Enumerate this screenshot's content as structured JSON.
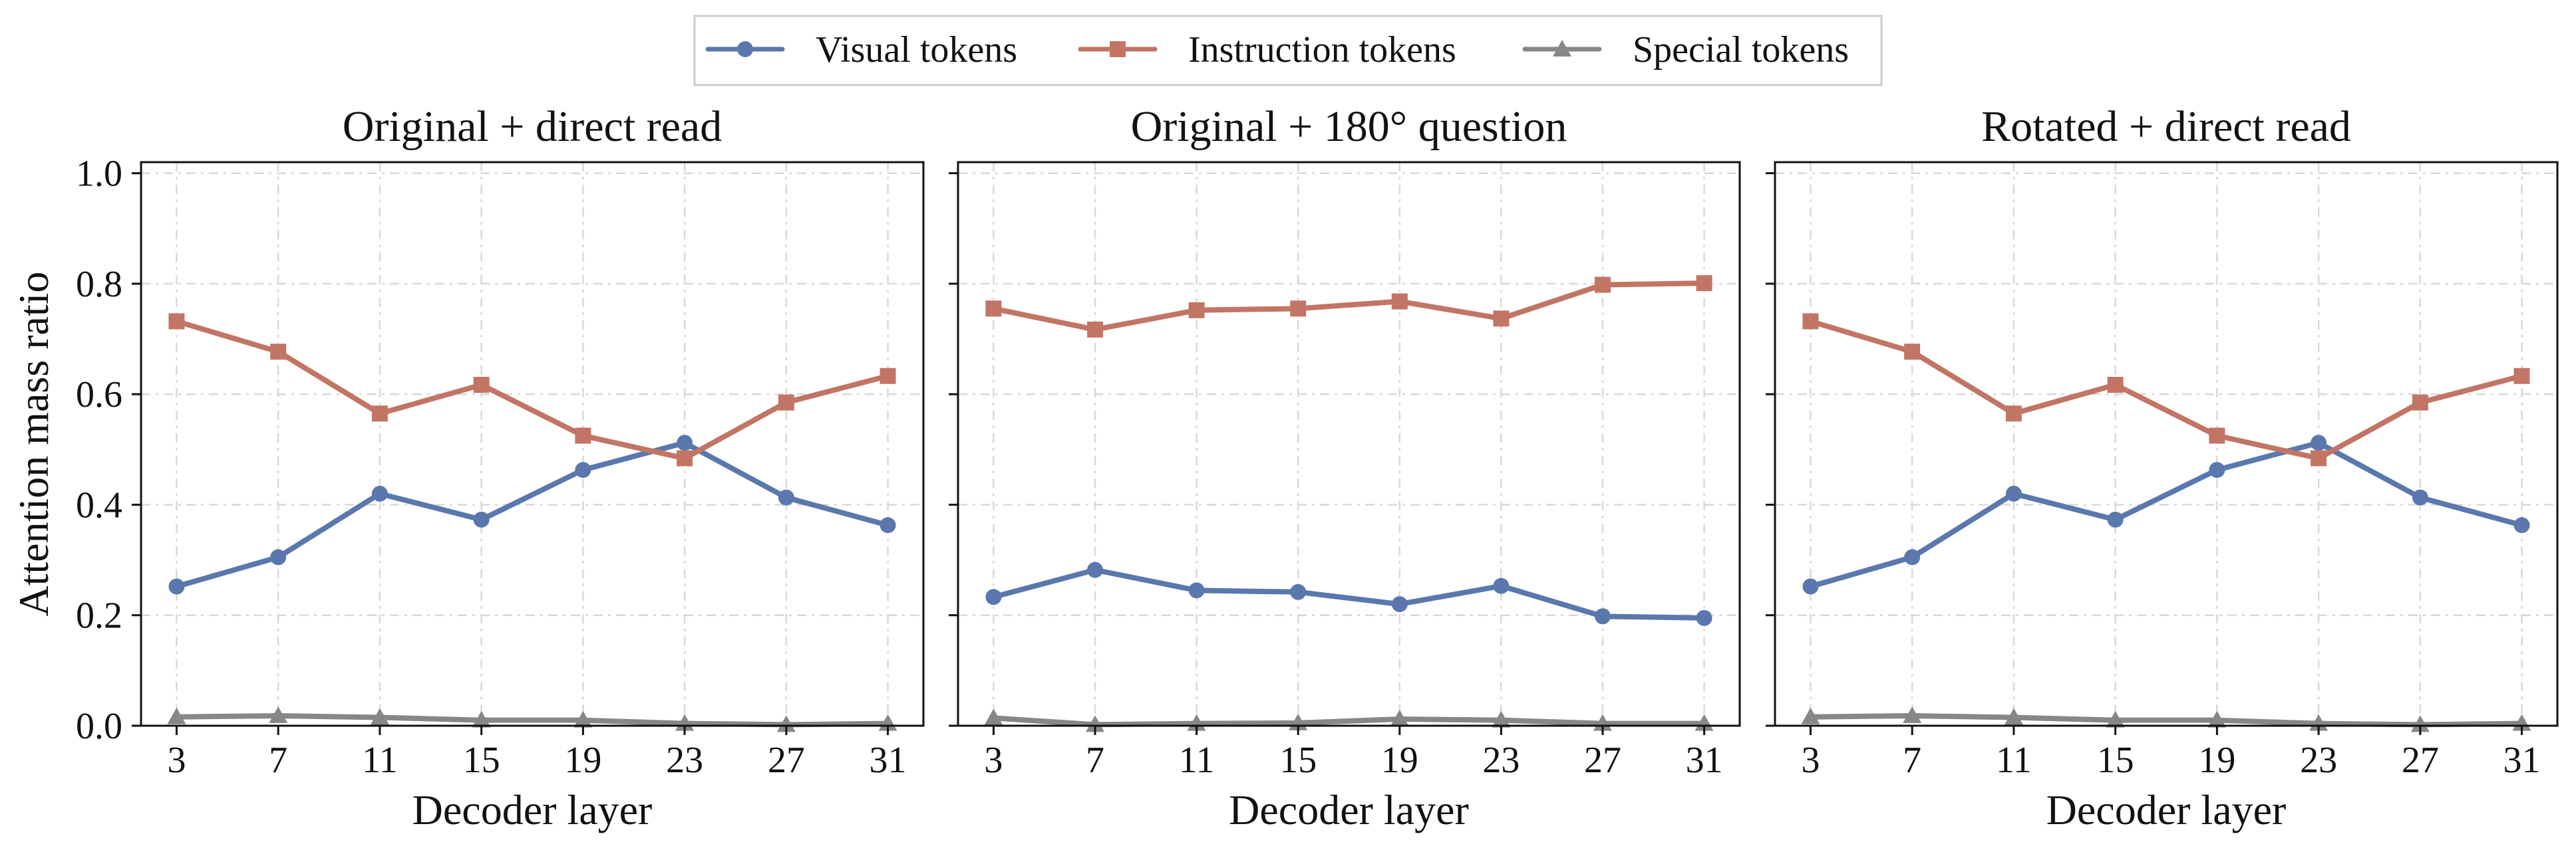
{
  "legend": [
    {
      "name": "Visual tokens",
      "color": "#5A78AD",
      "marker": "circle"
    },
    {
      "name": "Instruction tokens",
      "color": "#C27565",
      "marker": "square"
    },
    {
      "name": "Special tokens",
      "color": "#878787",
      "marker": "triangle"
    }
  ],
  "chart_data": [
    {
      "type": "line",
      "title": "Original + direct read",
      "xlabel": "Decoder layer",
      "ylabel": "Attention mass ratio",
      "x": [
        3,
        7,
        11,
        15,
        19,
        23,
        27,
        31
      ],
      "ylim": [
        0,
        1.0
      ],
      "yticks": [
        "0.0",
        "0.2",
        "0.4",
        "0.6",
        "0.8",
        "1.0"
      ],
      "grid": true,
      "legend": "top-center",
      "series": [
        {
          "name": "Visual tokens",
          "values": [
            0.252,
            0.305,
            0.42,
            0.373,
            0.463,
            0.512,
            0.413,
            0.363
          ]
        },
        {
          "name": "Instruction tokens",
          "values": [
            0.732,
            0.677,
            0.565,
            0.617,
            0.525,
            0.484,
            0.585,
            0.633
          ]
        },
        {
          "name": "Special tokens",
          "values": [
            0.016,
            0.018,
            0.015,
            0.01,
            0.01,
            0.004,
            0.002,
            0.004
          ]
        }
      ]
    },
    {
      "type": "line",
      "title": "Original + 180° question",
      "xlabel": "Decoder layer",
      "ylabel": "",
      "x": [
        3,
        7,
        11,
        15,
        19,
        23,
        27,
        31
      ],
      "ylim": [
        0,
        1.0
      ],
      "yticks": [
        "",
        "",
        "",
        "",
        "",
        ""
      ],
      "grid": true,
      "series": [
        {
          "name": "Visual tokens",
          "values": [
            0.233,
            0.282,
            0.245,
            0.242,
            0.22,
            0.253,
            0.198,
            0.195
          ]
        },
        {
          "name": "Instruction tokens",
          "values": [
            0.755,
            0.717,
            0.752,
            0.755,
            0.768,
            0.737,
            0.798,
            0.801
          ]
        },
        {
          "name": "Special tokens",
          "values": [
            0.014,
            0.002,
            0.004,
            0.005,
            0.012,
            0.01,
            0.004,
            0.004
          ]
        }
      ]
    },
    {
      "type": "line",
      "title": "Rotated + direct read",
      "xlabel": "Decoder layer",
      "ylabel": "",
      "x": [
        3,
        7,
        11,
        15,
        19,
        23,
        27,
        31
      ],
      "ylim": [
        0,
        1.0
      ],
      "yticks": [
        "",
        "",
        "",
        "",
        "",
        ""
      ],
      "grid": true,
      "series": [
        {
          "name": "Visual tokens",
          "values": [
            0.252,
            0.305,
            0.42,
            0.373,
            0.463,
            0.512,
            0.413,
            0.363
          ]
        },
        {
          "name": "Instruction tokens",
          "values": [
            0.732,
            0.677,
            0.565,
            0.617,
            0.525,
            0.484,
            0.585,
            0.633
          ]
        },
        {
          "name": "Special tokens",
          "values": [
            0.016,
            0.018,
            0.015,
            0.01,
            0.01,
            0.004,
            0.002,
            0.004
          ]
        }
      ]
    }
  ]
}
